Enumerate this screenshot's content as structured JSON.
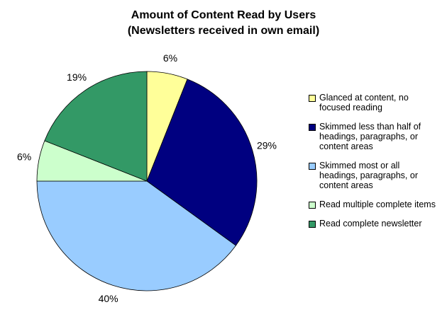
{
  "chart_data": {
    "type": "pie",
    "title": "Amount of Content Read by Users",
    "subtitle": "(Newsletters received in own email)",
    "categories": [
      "Glanced at content, no focused reading",
      "Skimmed less than half of headings, paragraphs, or content areas",
      "Skimmed most or all headings, paragraphs, or content areas",
      "Read multiple complete items",
      "Read complete newsletter"
    ],
    "values": [
      6,
      29,
      40,
      6,
      19
    ],
    "value_labels": [
      "6%",
      "29%",
      "40%",
      "6%",
      "19%"
    ],
    "colors": [
      "#ffff99",
      "#000080",
      "#99ccff",
      "#ccffcc",
      "#339966"
    ],
    "legend": "right"
  }
}
